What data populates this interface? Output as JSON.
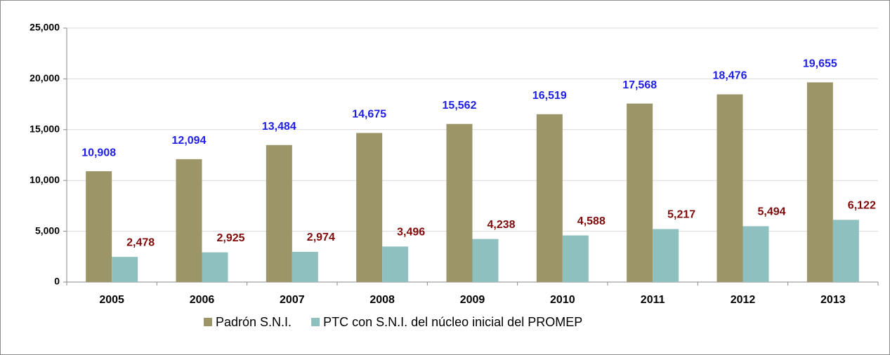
{
  "chart_data": {
    "type": "bar",
    "categories": [
      "2005",
      "2006",
      "2007",
      "2008",
      "2009",
      "2010",
      "2011",
      "2012",
      "2013"
    ],
    "series": [
      {
        "name": "Padrón S.N.I.",
        "color": "#9b9567",
        "label_color": "#1f1fe6",
        "values": [
          10908,
          12094,
          13484,
          14675,
          15562,
          16519,
          17568,
          18476,
          19655
        ],
        "value_labels": [
          "10,908",
          "12,094",
          "13,484",
          "14,675",
          "15,562",
          "16,519",
          "17,568",
          "18,476",
          "19,655"
        ]
      },
      {
        "name": "PTC con S.N.I. del núcleo inicial del PROMEP",
        "color": "#8fc0c0",
        "label_color": "#7f0a0a",
        "values": [
          2478,
          2925,
          2974,
          3496,
          4238,
          4588,
          5217,
          5494,
          6122
        ],
        "value_labels": [
          "2,478",
          "2,925",
          "2,974",
          "3,496",
          "4,238",
          "4,588",
          "5,217",
          "5,494",
          "6,122"
        ]
      }
    ],
    "ylim": [
      0,
      25000
    ],
    "yticks": [
      0,
      {
        "value": 5000,
        "label": "5,000"
      },
      {
        "value": 10000,
        "label": "10,000"
      },
      {
        "value": 15000,
        "label": "15,000"
      },
      {
        "value": 20000,
        "label": "20,000"
      },
      {
        "value": 25000,
        "label": "25,000"
      }
    ],
    "grid": true,
    "legend": "bottom"
  }
}
